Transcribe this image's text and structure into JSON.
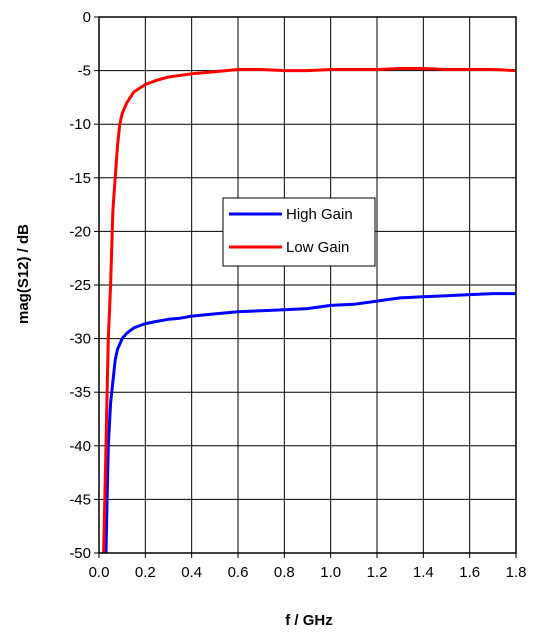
{
  "chart_data": {
    "type": "line",
    "title": "",
    "xlabel": "f / GHz",
    "ylabel": "mag(S12) / dB",
    "xlim": [
      0.0,
      1.8
    ],
    "ylim": [
      -50,
      0
    ],
    "xticks": [
      0.0,
      0.2,
      0.4,
      0.6,
      0.8,
      1.0,
      1.2,
      1.4,
      1.6,
      1.8
    ],
    "yticks": [
      0,
      -5,
      -10,
      -15,
      -20,
      -25,
      -30,
      -35,
      -40,
      -45,
      -50
    ],
    "xtick_labels": [
      "0.0",
      "0.2",
      "0.4",
      "0.6",
      "0.8",
      "1.0",
      "1.2",
      "1.4",
      "1.6",
      "1.8"
    ],
    "ytick_labels": [
      "0",
      "-5",
      "-10",
      "-15",
      "-20",
      "-25",
      "-30",
      "-35",
      "-40",
      "-45",
      "-50"
    ],
    "grid": true,
    "legend_position": "center",
    "series": [
      {
        "name": "High Gain",
        "color": "#0000ff",
        "points": [
          [
            0.03,
            -50
          ],
          [
            0.035,
            -45
          ],
          [
            0.04,
            -40
          ],
          [
            0.05,
            -36
          ],
          [
            0.06,
            -34
          ],
          [
            0.07,
            -32
          ],
          [
            0.08,
            -31
          ],
          [
            0.1,
            -30
          ],
          [
            0.12,
            -29.5
          ],
          [
            0.15,
            -29
          ],
          [
            0.2,
            -28.6
          ],
          [
            0.25,
            -28.4
          ],
          [
            0.3,
            -28.2
          ],
          [
            0.35,
            -28.1
          ],
          [
            0.4,
            -27.9
          ],
          [
            0.5,
            -27.7
          ],
          [
            0.6,
            -27.5
          ],
          [
            0.7,
            -27.4
          ],
          [
            0.8,
            -27.3
          ],
          [
            0.9,
            -27.2
          ],
          [
            1.0,
            -26.9
          ],
          [
            1.1,
            -26.8
          ],
          [
            1.2,
            -26.5
          ],
          [
            1.3,
            -26.2
          ],
          [
            1.4,
            -26.1
          ],
          [
            1.5,
            -26.0
          ],
          [
            1.6,
            -25.9
          ],
          [
            1.7,
            -25.8
          ],
          [
            1.8,
            -25.8
          ]
        ]
      },
      {
        "name": "Low Gain",
        "color": "#ff0000",
        "points": [
          [
            0.02,
            -50
          ],
          [
            0.025,
            -45
          ],
          [
            0.03,
            -40
          ],
          [
            0.035,
            -35
          ],
          [
            0.04,
            -30
          ],
          [
            0.05,
            -25
          ],
          [
            0.06,
            -18
          ],
          [
            0.08,
            -12
          ],
          [
            0.09,
            -10
          ],
          [
            0.1,
            -9
          ],
          [
            0.12,
            -8
          ],
          [
            0.15,
            -7
          ],
          [
            0.2,
            -6.3
          ],
          [
            0.25,
            -5.9
          ],
          [
            0.3,
            -5.6
          ],
          [
            0.4,
            -5.3
          ],
          [
            0.5,
            -5.1
          ],
          [
            0.6,
            -4.9
          ],
          [
            0.7,
            -4.9
          ],
          [
            0.8,
            -5.0
          ],
          [
            0.9,
            -5.0
          ],
          [
            1.0,
            -4.9
          ],
          [
            1.1,
            -4.9
          ],
          [
            1.2,
            -4.9
          ],
          [
            1.3,
            -4.8
          ],
          [
            1.4,
            -4.8
          ],
          [
            1.5,
            -4.9
          ],
          [
            1.6,
            -4.9
          ],
          [
            1.7,
            -4.9
          ],
          [
            1.8,
            -5.0
          ]
        ]
      }
    ]
  }
}
